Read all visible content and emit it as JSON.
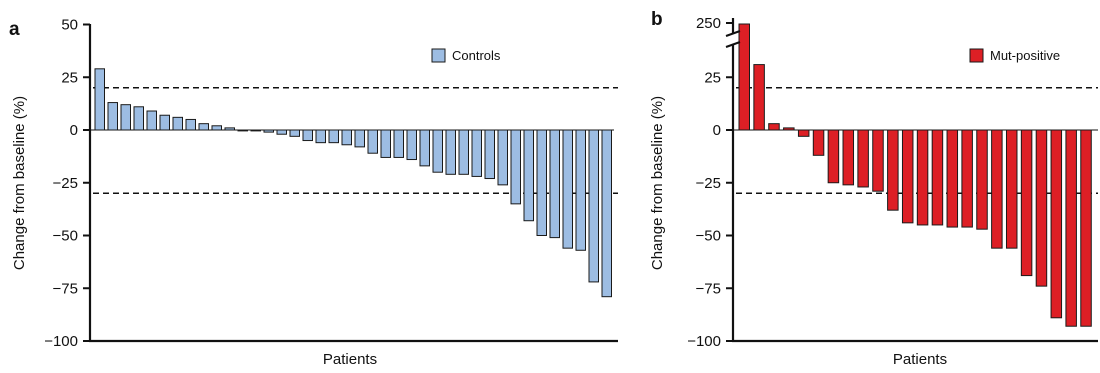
{
  "chart_data": [
    {
      "panel": "a",
      "type": "bar",
      "chart_subtype": "waterfall",
      "title": "",
      "xlabel": "Patients",
      "ylabel": "Change from baseline (%)",
      "ylim": [
        -100,
        50
      ],
      "yticks": [
        50,
        25,
        0,
        -25,
        -50,
        -75,
        -100
      ],
      "ytick_labels": [
        "50",
        "25",
        "0",
        "−25",
        "−50",
        "−75",
        "−100"
      ],
      "reference_lines": [
        20,
        -30
      ],
      "legend": {
        "label": "Controls",
        "position": "top-right"
      },
      "bar_color": "#9dbde3",
      "edge_color": "#1a1a1a",
      "series": [
        {
          "name": "Controls",
          "values": [
            29,
            13,
            12,
            11,
            9,
            7,
            6,
            5,
            3,
            2,
            1,
            0,
            0,
            -1,
            -2,
            -3,
            -5,
            -6,
            -6,
            -7,
            -8,
            -11,
            -13,
            -13,
            -14,
            -17,
            -20,
            -21,
            -21,
            -22,
            -23,
            -26,
            -35,
            -43,
            -50,
            -51,
            -56,
            -57,
            -72,
            -79
          ]
        }
      ]
    },
    {
      "panel": "b",
      "type": "bar",
      "chart_subtype": "waterfall",
      "title": "",
      "xlabel": "Patients",
      "ylabel": "Change from baseline (%)",
      "ylim": [
        -100,
        250
      ],
      "axis_break": {
        "between": [
          40,
          240
        ]
      },
      "yticks": [
        250,
        25,
        0,
        -25,
        -50,
        -75,
        -100
      ],
      "ytick_labels": [
        "250",
        "25",
        "0",
        "−25",
        "−50",
        "−75",
        "−100"
      ],
      "reference_lines": [
        20,
        -30
      ],
      "legend": {
        "label": "Mut-positive",
        "position": "top-right"
      },
      "bar_color": "#dd1f25",
      "edge_color": "#1a1a1a",
      "series": [
        {
          "name": "Mut-positive",
          "values": [
            250,
            31,
            3,
            1,
            -3,
            -12,
            -25,
            -26,
            -27,
            -29,
            -38,
            -44,
            -45,
            -45,
            -46,
            -46,
            -47,
            -56,
            -56,
            -69,
            -74,
            -89,
            -93,
            -93
          ]
        }
      ]
    }
  ]
}
